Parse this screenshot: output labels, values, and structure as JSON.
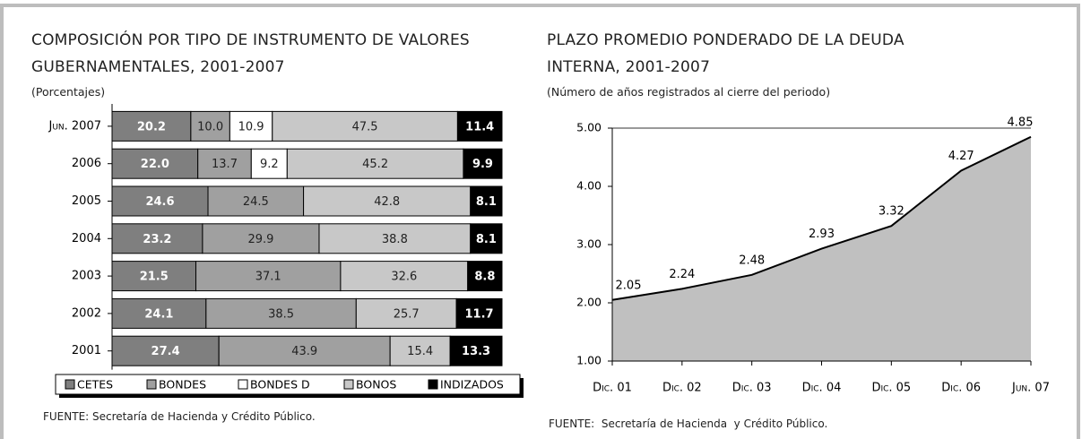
{
  "chart_data": [
    {
      "type": "stacked-bar-horizontal",
      "title": "COMPOSICIÓN POR TIPO DE INSTRUMENTO DE VALORES GUBERNAMENTALES, 2001-2007",
      "subtitle": "(Porcentajes)",
      "source": "FUENTE: Secretaría de Hacienda y Crédito Público.",
      "categories": [
        "Jun. 2007",
        "2006",
        "2005",
        "2004",
        "2003",
        "2002",
        "2001"
      ],
      "xlim": [
        0,
        100
      ],
      "series": [
        {
          "name": "CETES",
          "color": "#7f7f7f",
          "values": [
            20.2,
            22.0,
            24.6,
            23.2,
            21.5,
            24.1,
            27.4
          ],
          "value_labels": [
            "20.2",
            "22.0",
            "24.6",
            "23.2",
            "21.5",
            "24.1",
            "27.4"
          ]
        },
        {
          "name": "BONDES",
          "color": "#a0a0a0",
          "values": [
            10.0,
            13.7,
            24.5,
            29.9,
            37.1,
            38.5,
            43.9
          ],
          "value_labels": [
            "10.0",
            "13.7",
            "24.5",
            "29.9",
            "37.1",
            "38.5",
            "43.9"
          ]
        },
        {
          "name": "BONDES D",
          "color": "#ffffff",
          "values": [
            10.9,
            9.2,
            null,
            null,
            null,
            null,
            null
          ],
          "value_labels": [
            "10.9",
            "9.2",
            null,
            null,
            null,
            null,
            null
          ]
        },
        {
          "name": "BONOS",
          "color": "#c8c8c8",
          "values": [
            47.5,
            45.2,
            42.8,
            38.8,
            32.6,
            25.7,
            15.4
          ],
          "value_labels": [
            "47.5",
            "45.2",
            "42.8",
            "38.8",
            "32.6",
            "25.7",
            "15.4"
          ]
        },
        {
          "name": "INDIZADOS",
          "color": "#000000",
          "values": [
            11.4,
            9.9,
            8.1,
            8.1,
            8.8,
            11.7,
            13.3
          ],
          "value_labels": [
            "11.4",
            "9.9",
            "8.1",
            "8.1",
            "8.8",
            "11.7",
            "13.3"
          ]
        }
      ]
    },
    {
      "type": "area",
      "title": "PLAZO PROMEDIO PONDERADO DE LA DEUDA INTERNA, 2001-2007",
      "subtitle": "(Número de años registrados al cierre del periodo)",
      "source": "FUENTE:  Secretaría de Hacienda  y Crédito Público.",
      "categories": [
        "Dic. 01",
        "Dic. 02",
        "Dic. 03",
        "Dic. 04",
        "Dic. 05",
        "Dic. 06",
        "Jun. 07"
      ],
      "values": [
        2.05,
        2.24,
        2.48,
        2.93,
        3.32,
        4.27,
        4.85
      ],
      "color": "#c0c0c0",
      "ylim": [
        1,
        5
      ],
      "yticks": [
        {
          "value": 1,
          "label": "1.00"
        },
        {
          "value": 2,
          "label": "2.00"
        },
        {
          "value": 3,
          "label": "3.00"
        },
        {
          "value": 4,
          "label": "4.00"
        },
        {
          "value": 5,
          "label": "5.00"
        }
      ]
    }
  ]
}
